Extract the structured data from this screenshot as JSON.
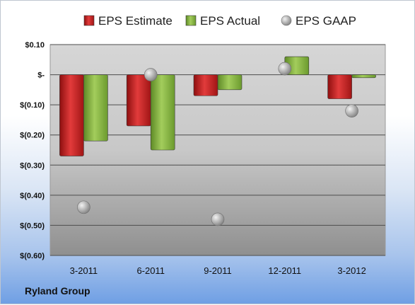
{
  "chart_data": {
    "type": "bar",
    "title": "",
    "xlabel": "",
    "ylabel": "",
    "categories": [
      "3-2011",
      "6-2011",
      "9-2011",
      "12-2011",
      "3-2012"
    ],
    "series": [
      {
        "name": "EPS Estimate",
        "kind": "bar",
        "color": "#d42a2a",
        "values": [
          -0.27,
          -0.17,
          -0.07,
          0.0,
          -0.08
        ]
      },
      {
        "name": "EPS Actual",
        "kind": "bar",
        "color": "#8ab843",
        "values": [
          -0.22,
          -0.25,
          -0.05,
          0.06,
          -0.01
        ]
      },
      {
        "name": "EPS GAAP",
        "kind": "marker",
        "color": "#b0b0b0",
        "values": [
          -0.44,
          0.0,
          -0.48,
          0.02,
          -0.12
        ]
      }
    ],
    "ylim": [
      -0.6,
      0.1
    ],
    "yticks": [
      0.1,
      0.0,
      -0.1,
      -0.2,
      -0.3,
      -0.4,
      -0.5,
      -0.6
    ],
    "ytick_labels": [
      "$0.10",
      "$-",
      "$(0.10)",
      "$(0.20)",
      "$(0.30)",
      "$(0.40)",
      "$(0.50)",
      "$(0.60)"
    ],
    "grid": true,
    "legend_position": "top"
  },
  "footer": {
    "company": "Ryland Group"
  }
}
